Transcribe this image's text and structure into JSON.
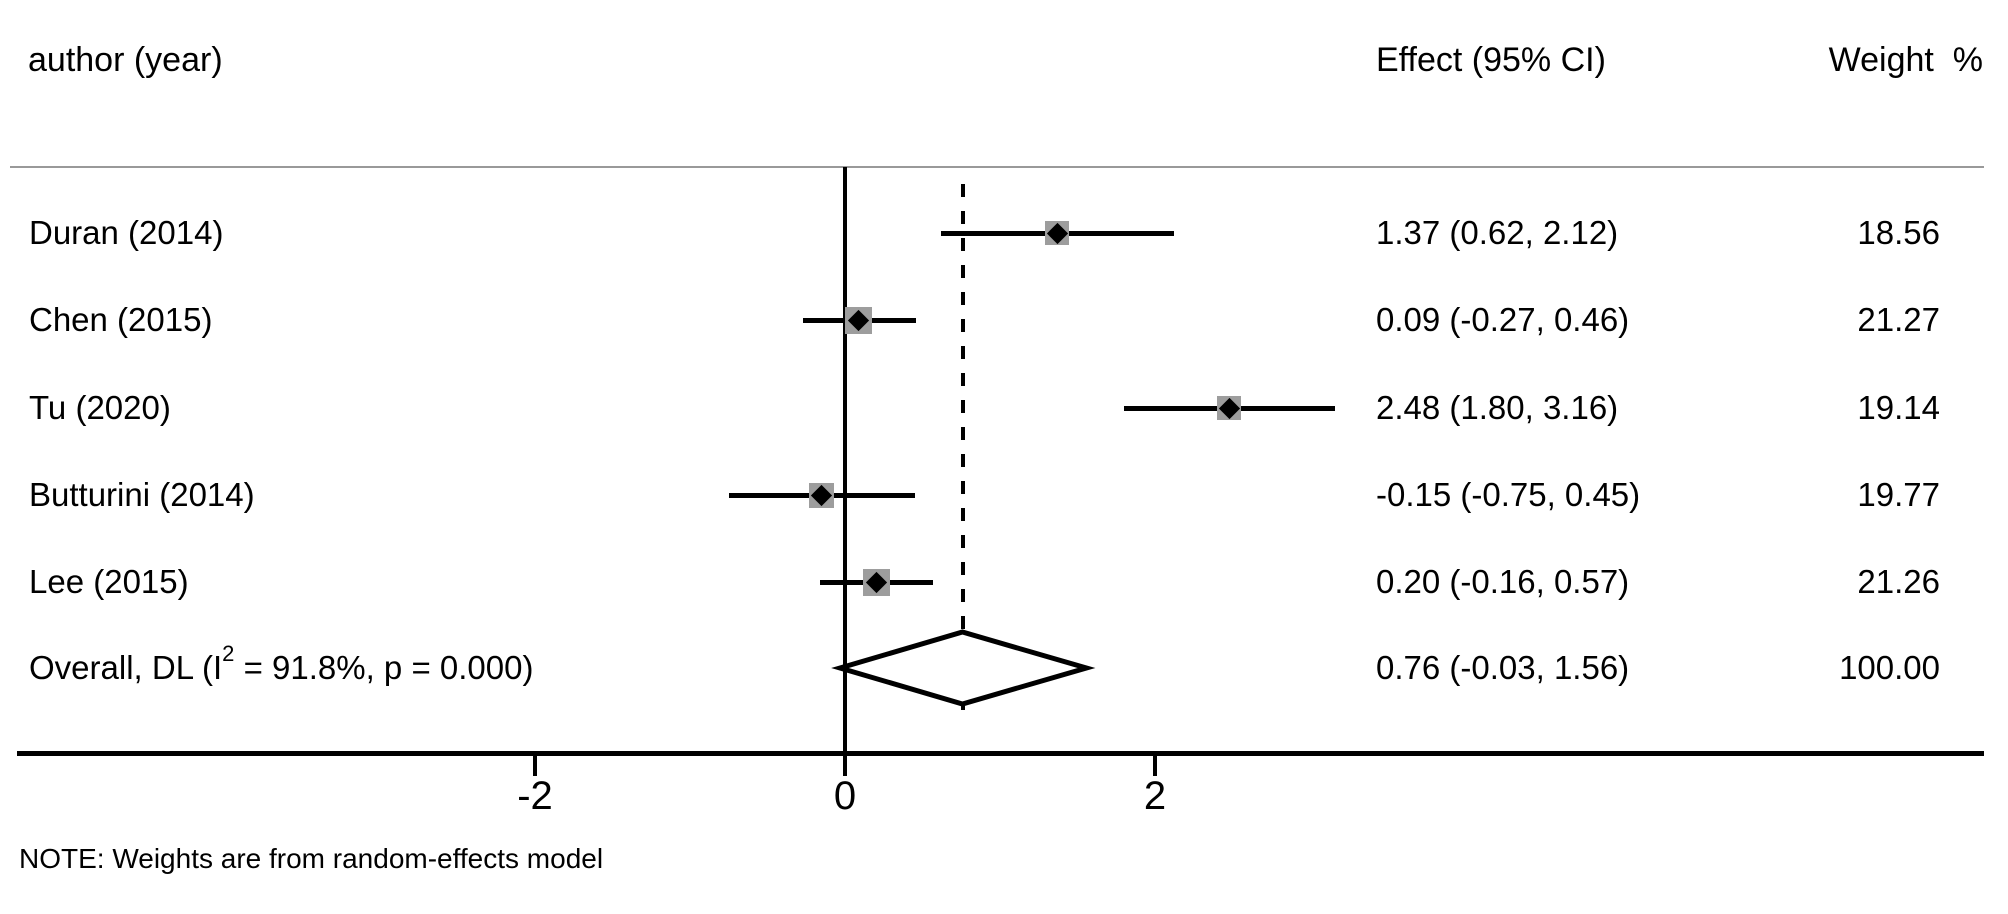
{
  "figure": {
    "note": "NOTE: Weights are from random-effects model"
  },
  "columns": {
    "study_header": "author (year)",
    "effect_header": "Effect (95% CI)",
    "weight_header": "Weight  %"
  },
  "chart_data": {
    "type": "forest",
    "x_axis": {
      "tick_values": [
        -2,
        0,
        2
      ],
      "tick_labels": [
        "-2",
        "0",
        "2"
      ],
      "null_line_value": 0,
      "overall_dashed_line_value": 0.76,
      "grid": false
    },
    "studies": [
      {
        "label": "Duran (2014)",
        "effect": 1.37,
        "ci_low": 0.62,
        "ci_high": 2.12,
        "weight": 18.56,
        "effect_text": "1.37 (0.62, 2.12)",
        "weight_text": "18.56"
      },
      {
        "label": "Chen (2015)",
        "effect": 0.09,
        "ci_low": -0.27,
        "ci_high": 0.46,
        "weight": 21.27,
        "effect_text": "0.09 (-0.27, 0.46)",
        "weight_text": "21.27"
      },
      {
        "label": "Tu (2020)",
        "effect": 2.48,
        "ci_low": 1.8,
        "ci_high": 3.16,
        "weight": 19.14,
        "effect_text": "2.48 (1.80, 3.16)",
        "weight_text": "19.14"
      },
      {
        "label": "Butturini (2014)",
        "effect": -0.15,
        "ci_low": -0.75,
        "ci_high": 0.45,
        "weight": 19.77,
        "effect_text": "-0.15 (-0.75, 0.45)",
        "weight_text": "19.77"
      },
      {
        "label": "Lee (2015)",
        "effect": 0.2,
        "ci_low": -0.16,
        "ci_high": 0.57,
        "weight": 21.26,
        "effect_text": "0.20 (-0.16, 0.57)",
        "weight_text": "21.26"
      }
    ],
    "overall": {
      "label_prefix": "Overall, DL (I",
      "label_sup": "2",
      "label_suffix": " = 91.8%, p = 0.000)",
      "effect": 0.76,
      "ci_low": -0.03,
      "ci_high": 1.56,
      "effect_text": "0.76 (-0.03, 1.56)",
      "weight_text": "100.00",
      "heterogeneity_i2": "91.8%",
      "p_value": "0.000",
      "model": "DL"
    },
    "colors": {
      "marker_square": "#9d9d9d",
      "marker_point": "#000000",
      "line": "#000000",
      "header_rule": "#999999",
      "diamond_fill": "#ffffff"
    }
  }
}
